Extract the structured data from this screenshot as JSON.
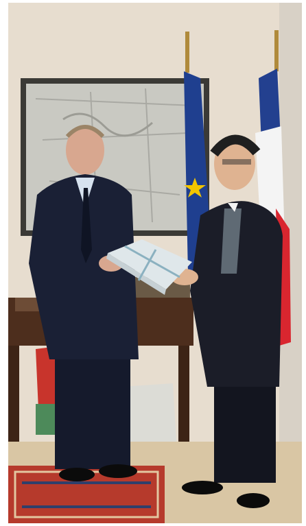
{
  "image": {
    "kind": "photograph",
    "colors": {
      "wall": "#e7ddcf",
      "map_frame": "#3b3a36",
      "map_paper": "#c9c9c2",
      "eu_flag_blue": "#1f3f8f",
      "eu_flag_star": "#f2c500",
      "fr_flag_blue": "#23408f",
      "fr_flag_white": "#f4f4f4",
      "fr_flag_red": "#d9262f",
      "desk_wood": "#4d2e1d",
      "suit_dark": "#1a2035",
      "rug_red": "#b63a2c",
      "gift_box": "#dfe7ea",
      "floor": "#d9c6a4"
    }
  }
}
